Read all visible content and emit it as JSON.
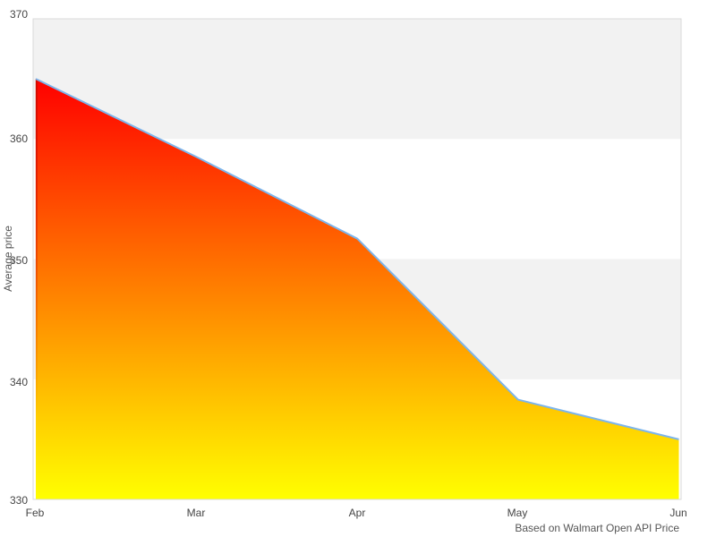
{
  "chart_data": {
    "type": "area",
    "title": "",
    "xlabel": "",
    "ylabel": "Average price",
    "categories": [
      "Feb",
      "Mar",
      "Apr",
      "May",
      "Jun"
    ],
    "values": [
      365,
      358.5,
      351.7,
      338.3,
      335
    ],
    "series_name": "Average price",
    "ylim": [
      330,
      370
    ],
    "y_ticks": [
      "330",
      "340",
      "350",
      "360",
      "370"
    ],
    "y_tick_values": [
      330,
      340,
      350,
      360,
      370
    ],
    "grid": "alternating-horizontal-bands",
    "legend_position": "none",
    "credits": "Based on Walmart Open API Price",
    "colors": {
      "line": "#7cb5ec",
      "area_gradient_top": "#ff0000",
      "area_gradient_bottom": "#ffff00",
      "area_left_edge": "#cc0c00",
      "band_gray": "#f2f2f2",
      "band_white": "#ffffff",
      "plot_border": "#d9d9d9",
      "tick_label": "#454545",
      "axis_title": "#555555",
      "credits_text": "#555555",
      "background": "#ffffff"
    }
  }
}
